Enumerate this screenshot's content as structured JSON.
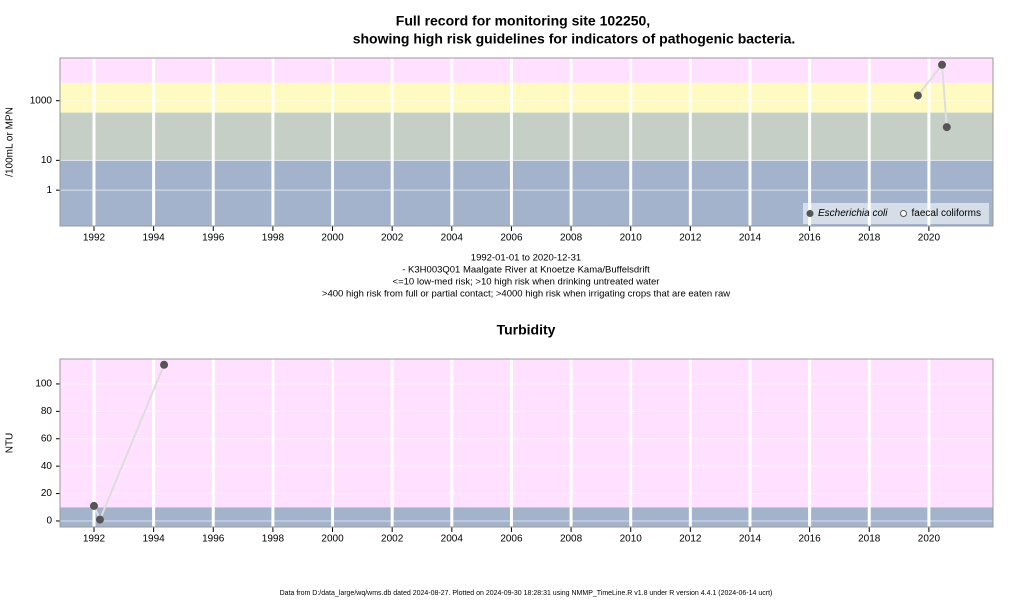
{
  "chart_data": [
    {
      "type": "scatter",
      "title": [
        "Full record for monitoring site 102250,",
        "showing high risk guidelines for indicators of pathogenic bacteria."
      ],
      "subtitle": [
        "1992-01-01 to 2020-12-31",
        "- K3H003Q01 Maalgate River at Knoetze Kama/Buffelsdrift",
        "<=10 low-med risk; >10 high risk when drinking untreated water",
        ">400 high risk from full or partial contact; >4000 high risk when irrigating crops that are eaten raw"
      ],
      "ylabel": "/100mL or MPN",
      "log_y": true,
      "xlim": [
        1990.86,
        2022.15
      ],
      "xticks": [
        1992,
        1994,
        1996,
        1998,
        2000,
        2002,
        2004,
        2006,
        2008,
        2010,
        2012,
        2014,
        2016,
        2018,
        2020
      ],
      "ylim": [
        0.063,
        27000
      ],
      "yticks": [
        1,
        10,
        1000
      ],
      "band_limits": [
        10,
        400,
        4000
      ],
      "band_colors": [
        "#a3b3cc",
        "#c5cfc5",
        "#fffac0",
        "#ffe0ff"
      ],
      "line_color": "#dddddd",
      "legend": "bottom-right",
      "series": [
        {
          "name": "Escherichia coli",
          "marker": "filled",
          "color": "#555555",
          "x": [
            2019.63,
            2020.44,
            2020.6
          ],
          "values": [
            1500,
            16000,
            130
          ]
        },
        {
          "name": "faecal coliforms",
          "marker": "open",
          "color": "#555555",
          "x": [],
          "values": []
        }
      ]
    },
    {
      "type": "scatter",
      "title": "Turbidity",
      "ylabel": "NTU",
      "log_y": false,
      "xlim": [
        1990.86,
        2022.15
      ],
      "xticks": [
        1992,
        1994,
        1996,
        1998,
        2000,
        2002,
        2004,
        2006,
        2008,
        2010,
        2012,
        2014,
        2016,
        2018,
        2020
      ],
      "ylim": [
        -4.4,
        118.2
      ],
      "yticks": [
        0,
        20,
        40,
        60,
        80,
        100
      ],
      "band_limits": [
        10
      ],
      "band_colors": [
        "#a3b3cc",
        "#ffe0ff"
      ],
      "line_color": "#dddddd",
      "series": [
        {
          "marker": "filled",
          "color": "#555555",
          "x": [
            1992,
            1992.2,
            1994.35
          ],
          "values": [
            11,
            1,
            114
          ]
        }
      ]
    }
  ],
  "footer": "Data from D:/data_large/wq/wms.db dated 2024-08-27. Plotted on 2024-09-30 18:28:31 using NMMP_TimeLine.R v1.8 under R version 4.4.1 (2024-06-14 ucrt)"
}
